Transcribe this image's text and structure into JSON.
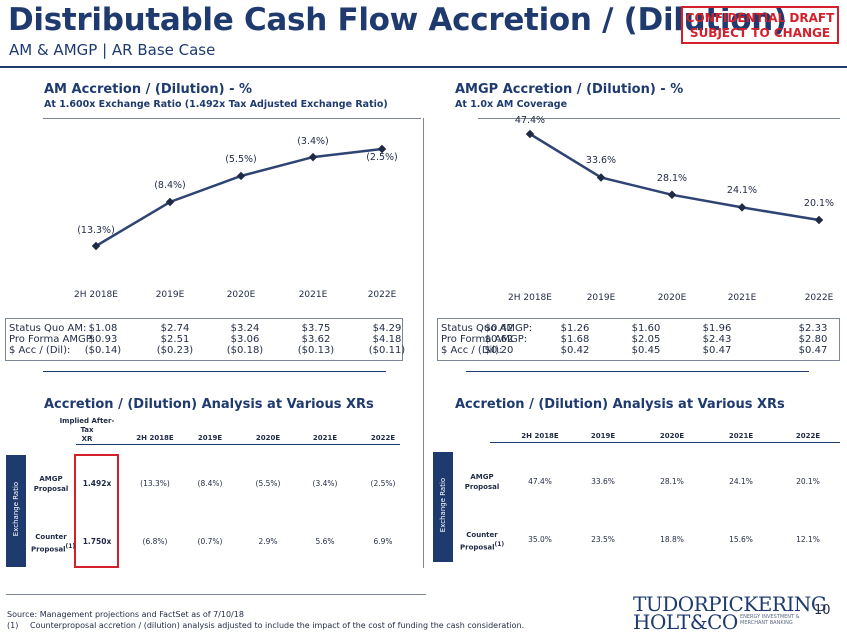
{
  "header": {
    "title": "Distributable Cash Flow Accretion / (Dilution)",
    "subtitle": "AM & AMGP | AR Base Case",
    "stamp_line1": "CONFIDENTIAL DRAFT",
    "stamp_line2": "SUBJECT TO CHANGE"
  },
  "left_section": {
    "title": "AM Accretion / (Dilution) - %",
    "subtitle": "At 1.600x Exchange Ratio (1.492x Tax Adjusted Exchange Ratio)"
  },
  "right_section": {
    "title": "AMGP Accretion / (Dilution) - %",
    "subtitle": "At 1.0x AM Coverage"
  },
  "chart_data": [
    {
      "type": "line",
      "categories": [
        "2H 2018E",
        "2019E",
        "2020E",
        "2021E",
        "2022E"
      ],
      "values": [
        -13.3,
        -8.4,
        -5.5,
        -3.4,
        -2.5
      ],
      "labels": [
        "(13.3%)",
        "(8.4%)",
        "(5.5%)",
        "(3.4%)",
        "(2.5%)"
      ],
      "title": "AM Accretion / (Dilution) - %",
      "subtitle": "At 1.600x Exchange Ratio (1.492x Tax Adjusted Exchange Ratio)",
      "color": "#2e4473"
    },
    {
      "type": "line",
      "categories": [
        "2H 2018E",
        "2019E",
        "2020E",
        "2021E",
        "2022E"
      ],
      "values": [
        47.4,
        33.6,
        28.1,
        24.1,
        20.1
      ],
      "labels": [
        "47.4%",
        "33.6%",
        "28.1%",
        "24.1%",
        "20.1%"
      ],
      "title": "AMGP Accretion / (Dilution) - %",
      "subtitle": "At 1.0x AM Coverage",
      "color": "#2e4473"
    }
  ],
  "am_info": {
    "labels": [
      "Status Quo AM:",
      "Pro Forma AMGP:",
      "$ Acc / (Dil):"
    ],
    "cols": [
      [
        "$1.08",
        "$0.93",
        "($0.14)"
      ],
      [
        "$2.74",
        "$2.51",
        "($0.23)"
      ],
      [
        "$3.24",
        "$3.06",
        "($0.18)"
      ],
      [
        "$3.75",
        "$3.62",
        "($0.13)"
      ],
      [
        "$4.29",
        "$4.18",
        "($0.11)"
      ]
    ]
  },
  "amgp_info": {
    "labels": [
      "Status Quo AMGP:",
      "Pro Forma AMGP:",
      "$ Acc / (Dil):"
    ],
    "cols": [
      [
        "$0.42",
        "$0.62",
        "$0.20"
      ],
      [
        "$1.26",
        "$1.68",
        "$0.42"
      ],
      [
        "$1.60",
        "$2.05",
        "$0.45"
      ],
      [
        "$1.96",
        "$2.43",
        "$0.47"
      ],
      [
        "$2.33",
        "$2.80",
        "$0.47"
      ]
    ]
  },
  "left_table": {
    "title": "Accretion / (Dilution) Analysis at Various XRs",
    "xr_header_line1": "Implied After-",
    "xr_header_line2": "Tax",
    "xr_header_line3": "XR",
    "years": [
      "2H 2018E",
      "2019E",
      "2020E",
      "2021E",
      "2022E"
    ],
    "side_label": "Exchange Ratio",
    "rows": [
      {
        "label_line1": "AMGP",
        "label_line2": "Proposal",
        "footnote": "",
        "xr": "1.492x",
        "values": [
          "(13.3%)",
          "(8.4%)",
          "(5.5%)",
          "(3.4%)",
          "(2.5%)"
        ]
      },
      {
        "label_line1": "Counter",
        "label_line2": "Proposal",
        "footnote": "(1)",
        "xr": "1.750x",
        "values": [
          "(6.8%)",
          "(0.7%)",
          "2.9%",
          "5.6%",
          "6.9%"
        ]
      }
    ]
  },
  "right_table": {
    "title": "Accretion / (Dilution) Analysis at Various XRs",
    "years": [
      "2H 2018E",
      "2019E",
      "2020E",
      "2021E",
      "2022E"
    ],
    "side_label": "Exchange Ratio",
    "rows": [
      {
        "label_line1": "AMGP",
        "label_line2": "Proposal",
        "footnote": "",
        "values": [
          "47.4%",
          "33.6%",
          "28.1%",
          "24.1%",
          "20.1%"
        ]
      },
      {
        "label_line1": "Counter",
        "label_line2": "Proposal",
        "footnote": "(1)",
        "values": [
          "35.0%",
          "23.5%",
          "18.8%",
          "15.6%",
          "12.1%"
        ]
      }
    ]
  },
  "footer": {
    "source": "Source: Management projections and FactSet as of 7/10/18",
    "note_num": "(1)",
    "note": "Counterproposal accretion / (dilution) analysis adjusted to include the impact of the cost of funding the cash consideration.",
    "logo_line1": "TUDORPICKERING",
    "logo_line2": "HOLT&CO",
    "logo_tag1": "ENERGY INVESTMENT &",
    "logo_tag2": "MERCHANT BANKING",
    "page_number": "10"
  }
}
